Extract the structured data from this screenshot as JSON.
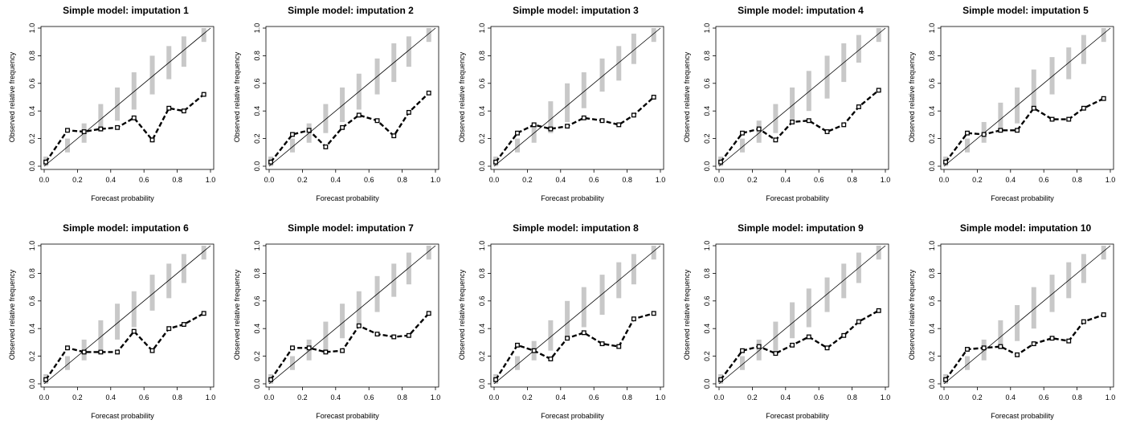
{
  "chart_data": [
    {
      "type": "line",
      "title": "Simple model: imputation 1",
      "xlabel": "Forecast probability",
      "ylabel": "Observed relative frequency",
      "xlim": [
        0,
        1
      ],
      "ylim": [
        0,
        1
      ],
      "xticks": [
        "0.0",
        "0.2",
        "0.4",
        "0.6",
        "0.8",
        "1.0"
      ],
      "yticks": [
        "0.0",
        "0.2",
        "0.4",
        "0.6",
        "0.8",
        "1.0"
      ],
      "x": [
        0.01,
        0.14,
        0.24,
        0.34,
        0.44,
        0.54,
        0.65,
        0.75,
        0.84,
        0.96
      ],
      "y": [
        0.03,
        0.26,
        0.25,
        0.27,
        0.28,
        0.35,
        0.19,
        0.42,
        0.4,
        0.52
      ],
      "interval_lower": [
        0.0,
        0.1,
        0.17,
        0.25,
        0.33,
        0.41,
        0.52,
        0.63,
        0.72,
        0.9
      ],
      "interval_upper": [
        0.07,
        0.2,
        0.31,
        0.45,
        0.57,
        0.68,
        0.8,
        0.87,
        0.94,
        1.0
      ]
    },
    {
      "type": "line",
      "title": "Simple model: imputation 2",
      "xlabel": "Forecast probability",
      "ylabel": "Observed relative frequency",
      "xlim": [
        0,
        1
      ],
      "ylim": [
        0,
        1
      ],
      "xticks": [
        "0.0",
        "0.2",
        "0.4",
        "0.6",
        "0.8",
        "1.0"
      ],
      "yticks": [
        "0.0",
        "0.2",
        "0.4",
        "0.6",
        "0.8",
        "1.0"
      ],
      "x": [
        0.01,
        0.14,
        0.24,
        0.34,
        0.44,
        0.54,
        0.65,
        0.75,
        0.84,
        0.96
      ],
      "y": [
        0.03,
        0.23,
        0.26,
        0.14,
        0.28,
        0.37,
        0.33,
        0.22,
        0.39,
        0.53
      ],
      "interval_lower": [
        0.0,
        0.1,
        0.17,
        0.24,
        0.32,
        0.41,
        0.52,
        0.61,
        0.72,
        0.9
      ],
      "interval_upper": [
        0.07,
        0.2,
        0.31,
        0.45,
        0.57,
        0.67,
        0.78,
        0.89,
        0.94,
        1.0
      ]
    },
    {
      "type": "line",
      "title": "Simple model: imputation 3",
      "xlabel": "Forecast probability",
      "ylabel": "Observed relative frequency",
      "xlim": [
        0,
        1
      ],
      "ylim": [
        0,
        1
      ],
      "xticks": [
        "0.0",
        "0.2",
        "0.4",
        "0.6",
        "0.8",
        "1.0"
      ],
      "yticks": [
        "0.0",
        "0.2",
        "0.4",
        "0.6",
        "0.8",
        "1.0"
      ],
      "x": [
        0.01,
        0.14,
        0.24,
        0.34,
        0.44,
        0.54,
        0.65,
        0.75,
        0.84,
        0.96
      ],
      "y": [
        0.03,
        0.24,
        0.3,
        0.27,
        0.29,
        0.35,
        0.33,
        0.3,
        0.37,
        0.5
      ],
      "interval_lower": [
        0.0,
        0.1,
        0.17,
        0.24,
        0.32,
        0.42,
        0.54,
        0.62,
        0.74,
        0.9
      ],
      "interval_upper": [
        0.07,
        0.2,
        0.31,
        0.47,
        0.6,
        0.68,
        0.78,
        0.87,
        0.96,
        1.0
      ]
    },
    {
      "type": "line",
      "title": "Simple model: imputation 4",
      "xlabel": "Forecast probability",
      "ylabel": "Observed relative frequency",
      "xlim": [
        0,
        1
      ],
      "ylim": [
        0,
        1
      ],
      "xticks": [
        "0.0",
        "0.2",
        "0.4",
        "0.6",
        "0.8",
        "1.0"
      ],
      "yticks": [
        "0.0",
        "0.2",
        "0.4",
        "0.6",
        "0.8",
        "1.0"
      ],
      "x": [
        0.01,
        0.14,
        0.24,
        0.34,
        0.44,
        0.54,
        0.65,
        0.75,
        0.84,
        0.96
      ],
      "y": [
        0.03,
        0.24,
        0.27,
        0.19,
        0.32,
        0.33,
        0.25,
        0.3,
        0.43,
        0.55
      ],
      "interval_lower": [
        0.0,
        0.1,
        0.17,
        0.24,
        0.33,
        0.4,
        0.49,
        0.61,
        0.75,
        0.9
      ],
      "interval_upper": [
        0.07,
        0.2,
        0.33,
        0.45,
        0.57,
        0.69,
        0.8,
        0.89,
        0.95,
        1.0
      ]
    },
    {
      "type": "line",
      "title": "Simple model: imputation 5",
      "xlabel": "Forecast probability",
      "ylabel": "Observed relative frequency",
      "xlim": [
        0,
        1
      ],
      "ylim": [
        0,
        1
      ],
      "xticks": [
        "0.0",
        "0.2",
        "0.4",
        "0.6",
        "0.8",
        "1.0"
      ],
      "yticks": [
        "0.0",
        "0.2",
        "0.4",
        "0.6",
        "0.8",
        "1.0"
      ],
      "x": [
        0.01,
        0.14,
        0.24,
        0.34,
        0.44,
        0.54,
        0.65,
        0.75,
        0.84,
        0.96
      ],
      "y": [
        0.03,
        0.24,
        0.23,
        0.26,
        0.26,
        0.42,
        0.34,
        0.34,
        0.42,
        0.49
      ],
      "interval_lower": [
        0.0,
        0.1,
        0.17,
        0.25,
        0.31,
        0.42,
        0.52,
        0.63,
        0.74,
        0.9
      ],
      "interval_upper": [
        0.07,
        0.2,
        0.32,
        0.46,
        0.57,
        0.7,
        0.79,
        0.86,
        0.95,
        1.0
      ]
    },
    {
      "type": "line",
      "title": "Simple model: imputation 6",
      "xlabel": "Forecast probability",
      "ylabel": "Observed relative frequency",
      "xlim": [
        0,
        1
      ],
      "ylim": [
        0,
        1
      ],
      "xticks": [
        "0.0",
        "0.2",
        "0.4",
        "0.6",
        "0.8",
        "1.0"
      ],
      "yticks": [
        "0.0",
        "0.2",
        "0.4",
        "0.6",
        "0.8",
        "1.0"
      ],
      "x": [
        0.01,
        0.14,
        0.24,
        0.34,
        0.44,
        0.54,
        0.65,
        0.75,
        0.84,
        0.96
      ],
      "y": [
        0.03,
        0.26,
        0.23,
        0.23,
        0.23,
        0.38,
        0.24,
        0.4,
        0.43,
        0.51
      ],
      "interval_lower": [
        0.0,
        0.1,
        0.17,
        0.25,
        0.32,
        0.41,
        0.53,
        0.62,
        0.73,
        0.9
      ],
      "interval_upper": [
        0.07,
        0.2,
        0.32,
        0.46,
        0.58,
        0.67,
        0.79,
        0.87,
        0.94,
        1.0
      ]
    },
    {
      "type": "line",
      "title": "Simple model: imputation 7",
      "xlabel": "Forecast probability",
      "ylabel": "Observed relative frequency",
      "xlim": [
        0,
        1
      ],
      "ylim": [
        0,
        1
      ],
      "xticks": [
        "0.0",
        "0.2",
        "0.4",
        "0.6",
        "0.8",
        "1.0"
      ],
      "yticks": [
        "0.0",
        "0.2",
        "0.4",
        "0.6",
        "0.8",
        "1.0"
      ],
      "x": [
        0.01,
        0.14,
        0.24,
        0.34,
        0.44,
        0.54,
        0.65,
        0.75,
        0.84,
        0.96
      ],
      "y": [
        0.03,
        0.26,
        0.26,
        0.23,
        0.24,
        0.42,
        0.36,
        0.34,
        0.35,
        0.51
      ],
      "interval_lower": [
        0.0,
        0.1,
        0.17,
        0.24,
        0.33,
        0.42,
        0.52,
        0.63,
        0.72,
        0.9
      ],
      "interval_upper": [
        0.07,
        0.2,
        0.32,
        0.45,
        0.58,
        0.67,
        0.78,
        0.87,
        0.95,
        1.0
      ]
    },
    {
      "type": "line",
      "title": "Simple model: imputation 8",
      "xlabel": "Forecast probability",
      "ylabel": "Observed relative frequency",
      "xlim": [
        0,
        1
      ],
      "ylim": [
        0,
        1
      ],
      "xticks": [
        "0.0",
        "0.2",
        "0.4",
        "0.6",
        "0.8",
        "1.0"
      ],
      "yticks": [
        "0.0",
        "0.2",
        "0.4",
        "0.6",
        "0.8",
        "1.0"
      ],
      "x": [
        0.01,
        0.14,
        0.24,
        0.34,
        0.44,
        0.54,
        0.65,
        0.75,
        0.84,
        0.96
      ],
      "y": [
        0.03,
        0.28,
        0.24,
        0.18,
        0.33,
        0.37,
        0.29,
        0.27,
        0.47,
        0.51
      ],
      "interval_lower": [
        0.0,
        0.1,
        0.17,
        0.24,
        0.34,
        0.41,
        0.5,
        0.62,
        0.72,
        0.9
      ],
      "interval_upper": [
        0.07,
        0.2,
        0.31,
        0.46,
        0.6,
        0.7,
        0.79,
        0.88,
        0.94,
        1.0
      ]
    },
    {
      "type": "line",
      "title": "Simple model: imputation 9",
      "xlabel": "Forecast probability",
      "ylabel": "Observed relative frequency",
      "xlim": [
        0,
        1
      ],
      "ylim": [
        0,
        1
      ],
      "xticks": [
        "0.0",
        "0.2",
        "0.4",
        "0.6",
        "0.8",
        "1.0"
      ],
      "yticks": [
        "0.0",
        "0.2",
        "0.4",
        "0.6",
        "0.8",
        "1.0"
      ],
      "x": [
        0.01,
        0.14,
        0.24,
        0.34,
        0.44,
        0.54,
        0.65,
        0.75,
        0.84,
        0.96
      ],
      "y": [
        0.03,
        0.24,
        0.27,
        0.22,
        0.28,
        0.34,
        0.26,
        0.35,
        0.45,
        0.53
      ],
      "interval_lower": [
        0.0,
        0.1,
        0.17,
        0.24,
        0.33,
        0.41,
        0.52,
        0.62,
        0.73,
        0.9
      ],
      "interval_upper": [
        0.07,
        0.2,
        0.32,
        0.45,
        0.59,
        0.69,
        0.77,
        0.87,
        0.95,
        1.0
      ]
    },
    {
      "type": "line",
      "title": "Simple model: imputation 10",
      "xlabel": "Forecast probability",
      "ylabel": "Observed relative frequency",
      "xlim": [
        0,
        1
      ],
      "ylim": [
        0,
        1
      ],
      "xticks": [
        "0.0",
        "0.2",
        "0.4",
        "0.6",
        "0.8",
        "1.0"
      ],
      "yticks": [
        "0.0",
        "0.2",
        "0.4",
        "0.6",
        "0.8",
        "1.0"
      ],
      "x": [
        0.01,
        0.14,
        0.24,
        0.34,
        0.44,
        0.54,
        0.65,
        0.75,
        0.84,
        0.96
      ],
      "y": [
        0.03,
        0.25,
        0.26,
        0.27,
        0.21,
        0.29,
        0.33,
        0.31,
        0.45,
        0.5
      ],
      "interval_lower": [
        0.0,
        0.1,
        0.17,
        0.25,
        0.31,
        0.4,
        0.52,
        0.62,
        0.73,
        0.9
      ],
      "interval_upper": [
        0.07,
        0.2,
        0.32,
        0.46,
        0.57,
        0.7,
        0.79,
        0.88,
        0.94,
        1.0
      ]
    }
  ],
  "colors": {
    "interval_bar": "#c8c8c8",
    "line": "#000000",
    "diagonal": "#000000"
  }
}
